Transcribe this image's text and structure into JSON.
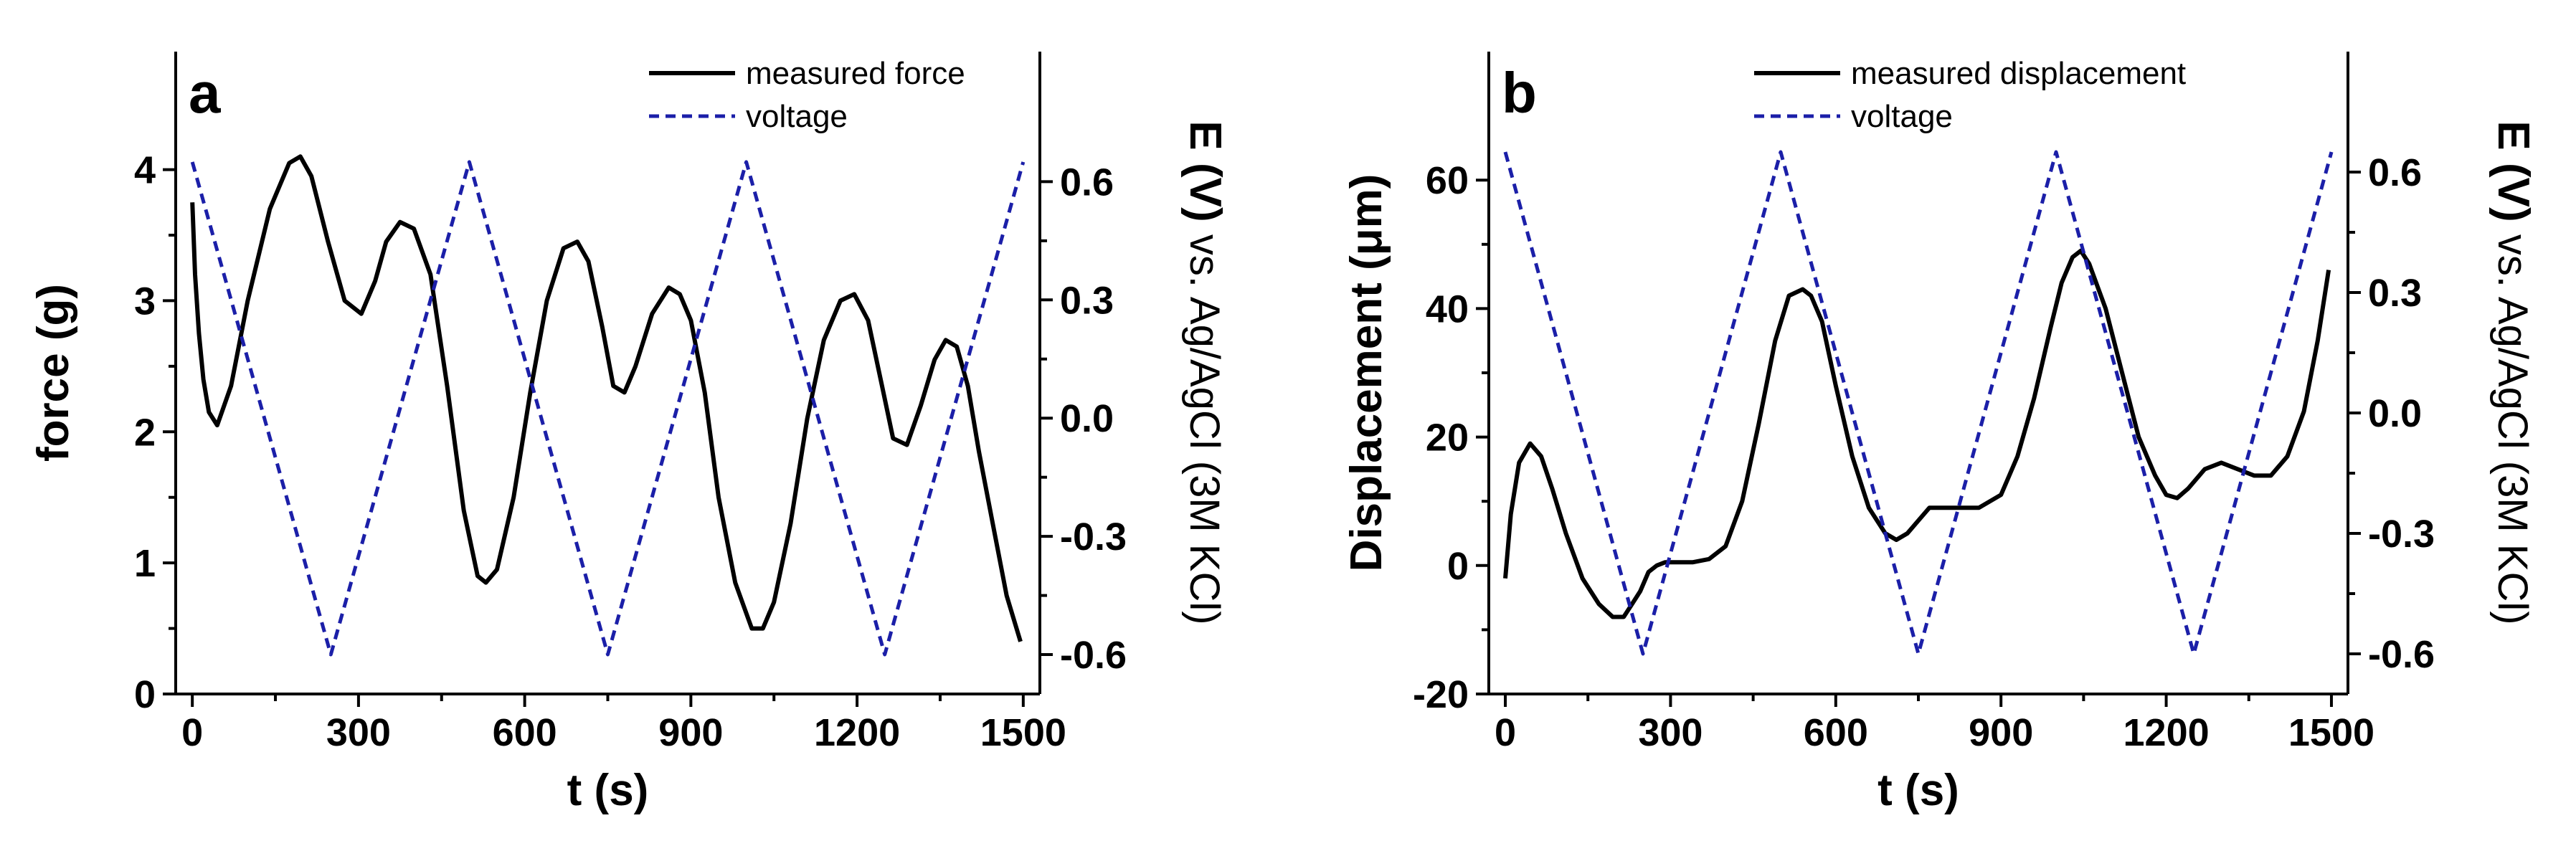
{
  "chart_data": [
    {
      "panel": "a",
      "type": "line",
      "xlabel": "t (s)",
      "ylabel": "force (g)",
      "y2label_bold": "E (V)",
      "y2label_rest": "vs. Ag/AgCl (3M KCl)",
      "xlim": [
        -30,
        1530
      ],
      "ylim": [
        0,
        4.9
      ],
      "y2lim": [
        -0.7,
        0.93
      ],
      "xticks": [
        0,
        300,
        600,
        900,
        1200,
        1500
      ],
      "xtick_labels": [
        "0",
        "300",
        "600",
        "900",
        "1200",
        "1500"
      ],
      "yticks": [
        0,
        1,
        2,
        3,
        4
      ],
      "ytick_labels": [
        "0",
        "1",
        "2",
        "3",
        "4"
      ],
      "y2ticks": [
        -0.6,
        -0.3,
        0.0,
        0.3,
        0.6
      ],
      "y2tick_labels": [
        "-0.6",
        "-0.3",
        "0.0",
        "0.3",
        "0.6"
      ],
      "legend_position": "top-right",
      "series": [
        {
          "name": "measured force",
          "axis": "left",
          "color": "#000000",
          "style": "solid",
          "x": [
            0,
            5,
            12,
            20,
            30,
            45,
            70,
            100,
            140,
            175,
            195,
            215,
            245,
            275,
            305,
            330,
            350,
            375,
            400,
            430,
            460,
            490,
            515,
            530,
            550,
            580,
            610,
            640,
            670,
            695,
            715,
            740,
            760,
            780,
            800,
            830,
            860,
            880,
            900,
            925,
            950,
            980,
            1010,
            1030,
            1050,
            1080,
            1110,
            1140,
            1170,
            1195,
            1220,
            1245,
            1265,
            1290,
            1315,
            1340,
            1360,
            1380,
            1400,
            1420,
            1445,
            1470,
            1495
          ],
          "values": [
            3.75,
            3.2,
            2.75,
            2.4,
            2.15,
            2.05,
            2.35,
            3.0,
            3.7,
            4.05,
            4.1,
            3.95,
            3.45,
            3.0,
            2.9,
            3.15,
            3.45,
            3.6,
            3.55,
            3.2,
            2.35,
            1.4,
            0.9,
            0.85,
            0.95,
            1.5,
            2.3,
            3.0,
            3.4,
            3.45,
            3.3,
            2.8,
            2.35,
            2.3,
            2.5,
            2.9,
            3.1,
            3.05,
            2.85,
            2.3,
            1.5,
            0.85,
            0.5,
            0.5,
            0.7,
            1.3,
            2.1,
            2.7,
            3.0,
            3.05,
            2.85,
            2.35,
            1.95,
            1.9,
            2.2,
            2.55,
            2.7,
            2.65,
            2.35,
            1.85,
            1.3,
            0.75,
            0.4
          ]
        },
        {
          "name": "voltage",
          "axis": "right",
          "color": "#1b1fa8",
          "style": "dashed",
          "x": [
            0,
            250,
            500,
            750,
            1000,
            1250,
            1500
          ],
          "values": [
            0.65,
            -0.6,
            0.65,
            -0.6,
            0.65,
            -0.6,
            0.65
          ]
        }
      ]
    },
    {
      "panel": "b",
      "type": "line",
      "xlabel": "t (s)",
      "ylabel": "Displacement (μm)",
      "y2label_bold": "E (V)",
      "y2label_rest": "vs. Ag/AgCl (3M KCl)",
      "xlim": [
        -30,
        1530
      ],
      "ylim": [
        -20,
        80
      ],
      "y2lim": [
        -0.7,
        0.9
      ],
      "xticks": [
        0,
        300,
        600,
        900,
        1200,
        1500
      ],
      "xtick_labels": [
        "0",
        "300",
        "600",
        "900",
        "1200",
        "1500"
      ],
      "yticks": [
        -20,
        0,
        20,
        40,
        60
      ],
      "ytick_labels": [
        "-20",
        "0",
        "20",
        "40",
        "60"
      ],
      "y2ticks": [
        -0.6,
        -0.3,
        0.0,
        0.3,
        0.6
      ],
      "y2tick_labels": [
        "-0.6",
        "-0.3",
        "0.0",
        "0.3",
        "0.6"
      ],
      "legend_position": "top-center",
      "series": [
        {
          "name": "measured displacement",
          "axis": "left",
          "color": "#000000",
          "style": "solid",
          "x": [
            0,
            10,
            25,
            45,
            65,
            85,
            110,
            140,
            170,
            195,
            215,
            230,
            245,
            260,
            275,
            290,
            310,
            340,
            370,
            400,
            430,
            460,
            490,
            515,
            540,
            555,
            575,
            600,
            630,
            660,
            690,
            710,
            730,
            750,
            770,
            790,
            820,
            860,
            900,
            930,
            960,
            990,
            1010,
            1030,
            1045,
            1060,
            1090,
            1120,
            1150,
            1180,
            1200,
            1220,
            1240,
            1270,
            1300,
            1330,
            1360,
            1390,
            1420,
            1450,
            1475,
            1495
          ],
          "values": [
            -2,
            8,
            16,
            19,
            17,
            12,
            5,
            -2,
            -6,
            -8,
            -8,
            -6,
            -4,
            -1,
            0,
            0.5,
            0.5,
            0.5,
            1,
            3,
            10,
            22,
            35,
            42,
            43,
            42,
            38,
            28,
            17,
            9,
            5,
            4,
            5,
            7,
            9,
            9,
            9,
            9,
            11,
            17,
            26,
            37,
            44,
            48,
            49,
            47,
            40,
            30,
            20,
            14,
            11,
            10.5,
            12,
            15,
            16,
            15,
            14,
            14,
            17,
            24,
            35,
            46
          ]
        },
        {
          "name": "voltage",
          "axis": "right",
          "color": "#1b1fa8",
          "style": "dashed",
          "x": [
            0,
            250,
            500,
            750,
            1000,
            1250,
            1500
          ],
          "values": [
            0.65,
            -0.6,
            0.65,
            -0.6,
            0.65,
            -0.6,
            0.65
          ]
        }
      ]
    }
  ]
}
